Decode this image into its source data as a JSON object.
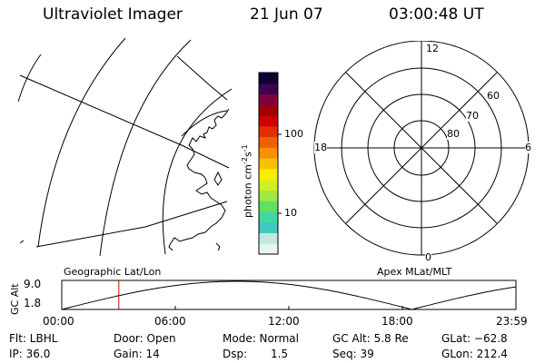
{
  "header": {
    "instrument": "Ultraviolet Imager",
    "date": "21 Jun 07",
    "time": "03:00:48 UT"
  },
  "colorbar": {
    "unit_label": "photon cm",
    "unit_sup1": "-2",
    "unit_mid": "s",
    "unit_sup2": "-1",
    "ticks": [
      {
        "label": "100",
        "value": 100
      },
      {
        "label": "10",
        "value": 10
      }
    ],
    "colors": [
      "#e8f4f0",
      "#c0e8e0",
      "#40c8c0",
      "#40d8a0",
      "#60e060",
      "#a0e840",
      "#d0f020",
      "#f8f000",
      "#f8c000",
      "#f89000",
      "#f06000",
      "#e03000",
      "#d00000",
      "#a00000",
      "#800040",
      "#400050",
      "#100030"
    ]
  },
  "polar_plot": {
    "mlt_labels": {
      "top": "12",
      "left": "18",
      "right": "6",
      "bottom": "0"
    },
    "lat_labels": [
      "60",
      "70",
      "80"
    ]
  },
  "altitude_plot": {
    "left_caption": "Geographic Lat/Lon",
    "right_caption": "Apex  MLat/MLT",
    "ylabel": "GC Alt",
    "ytick_labels": [
      "9.0",
      "1.8"
    ],
    "xtick_labels": [
      "00:00",
      "06:00",
      "12:00",
      "18:00",
      "23:59"
    ],
    "current_time_hours": 3.013
  },
  "info": {
    "flt": "Flt: LBHL",
    "ip": "IP: 36.0",
    "door": "Door: Open",
    "gain": "Gain: 14",
    "mode": "Mode: Normal",
    "dsp_label": "Dsp:",
    "dsp_value": "1.5",
    "gc_alt": "GC Alt: 5.8 Re",
    "seq": "Seq: 39",
    "glat": "GLat: −62.8",
    "glon": "GLon: 212.4"
  },
  "colors": {
    "foreground": "#000000",
    "time_marker": "#cc0000",
    "background": "#ffffff"
  }
}
